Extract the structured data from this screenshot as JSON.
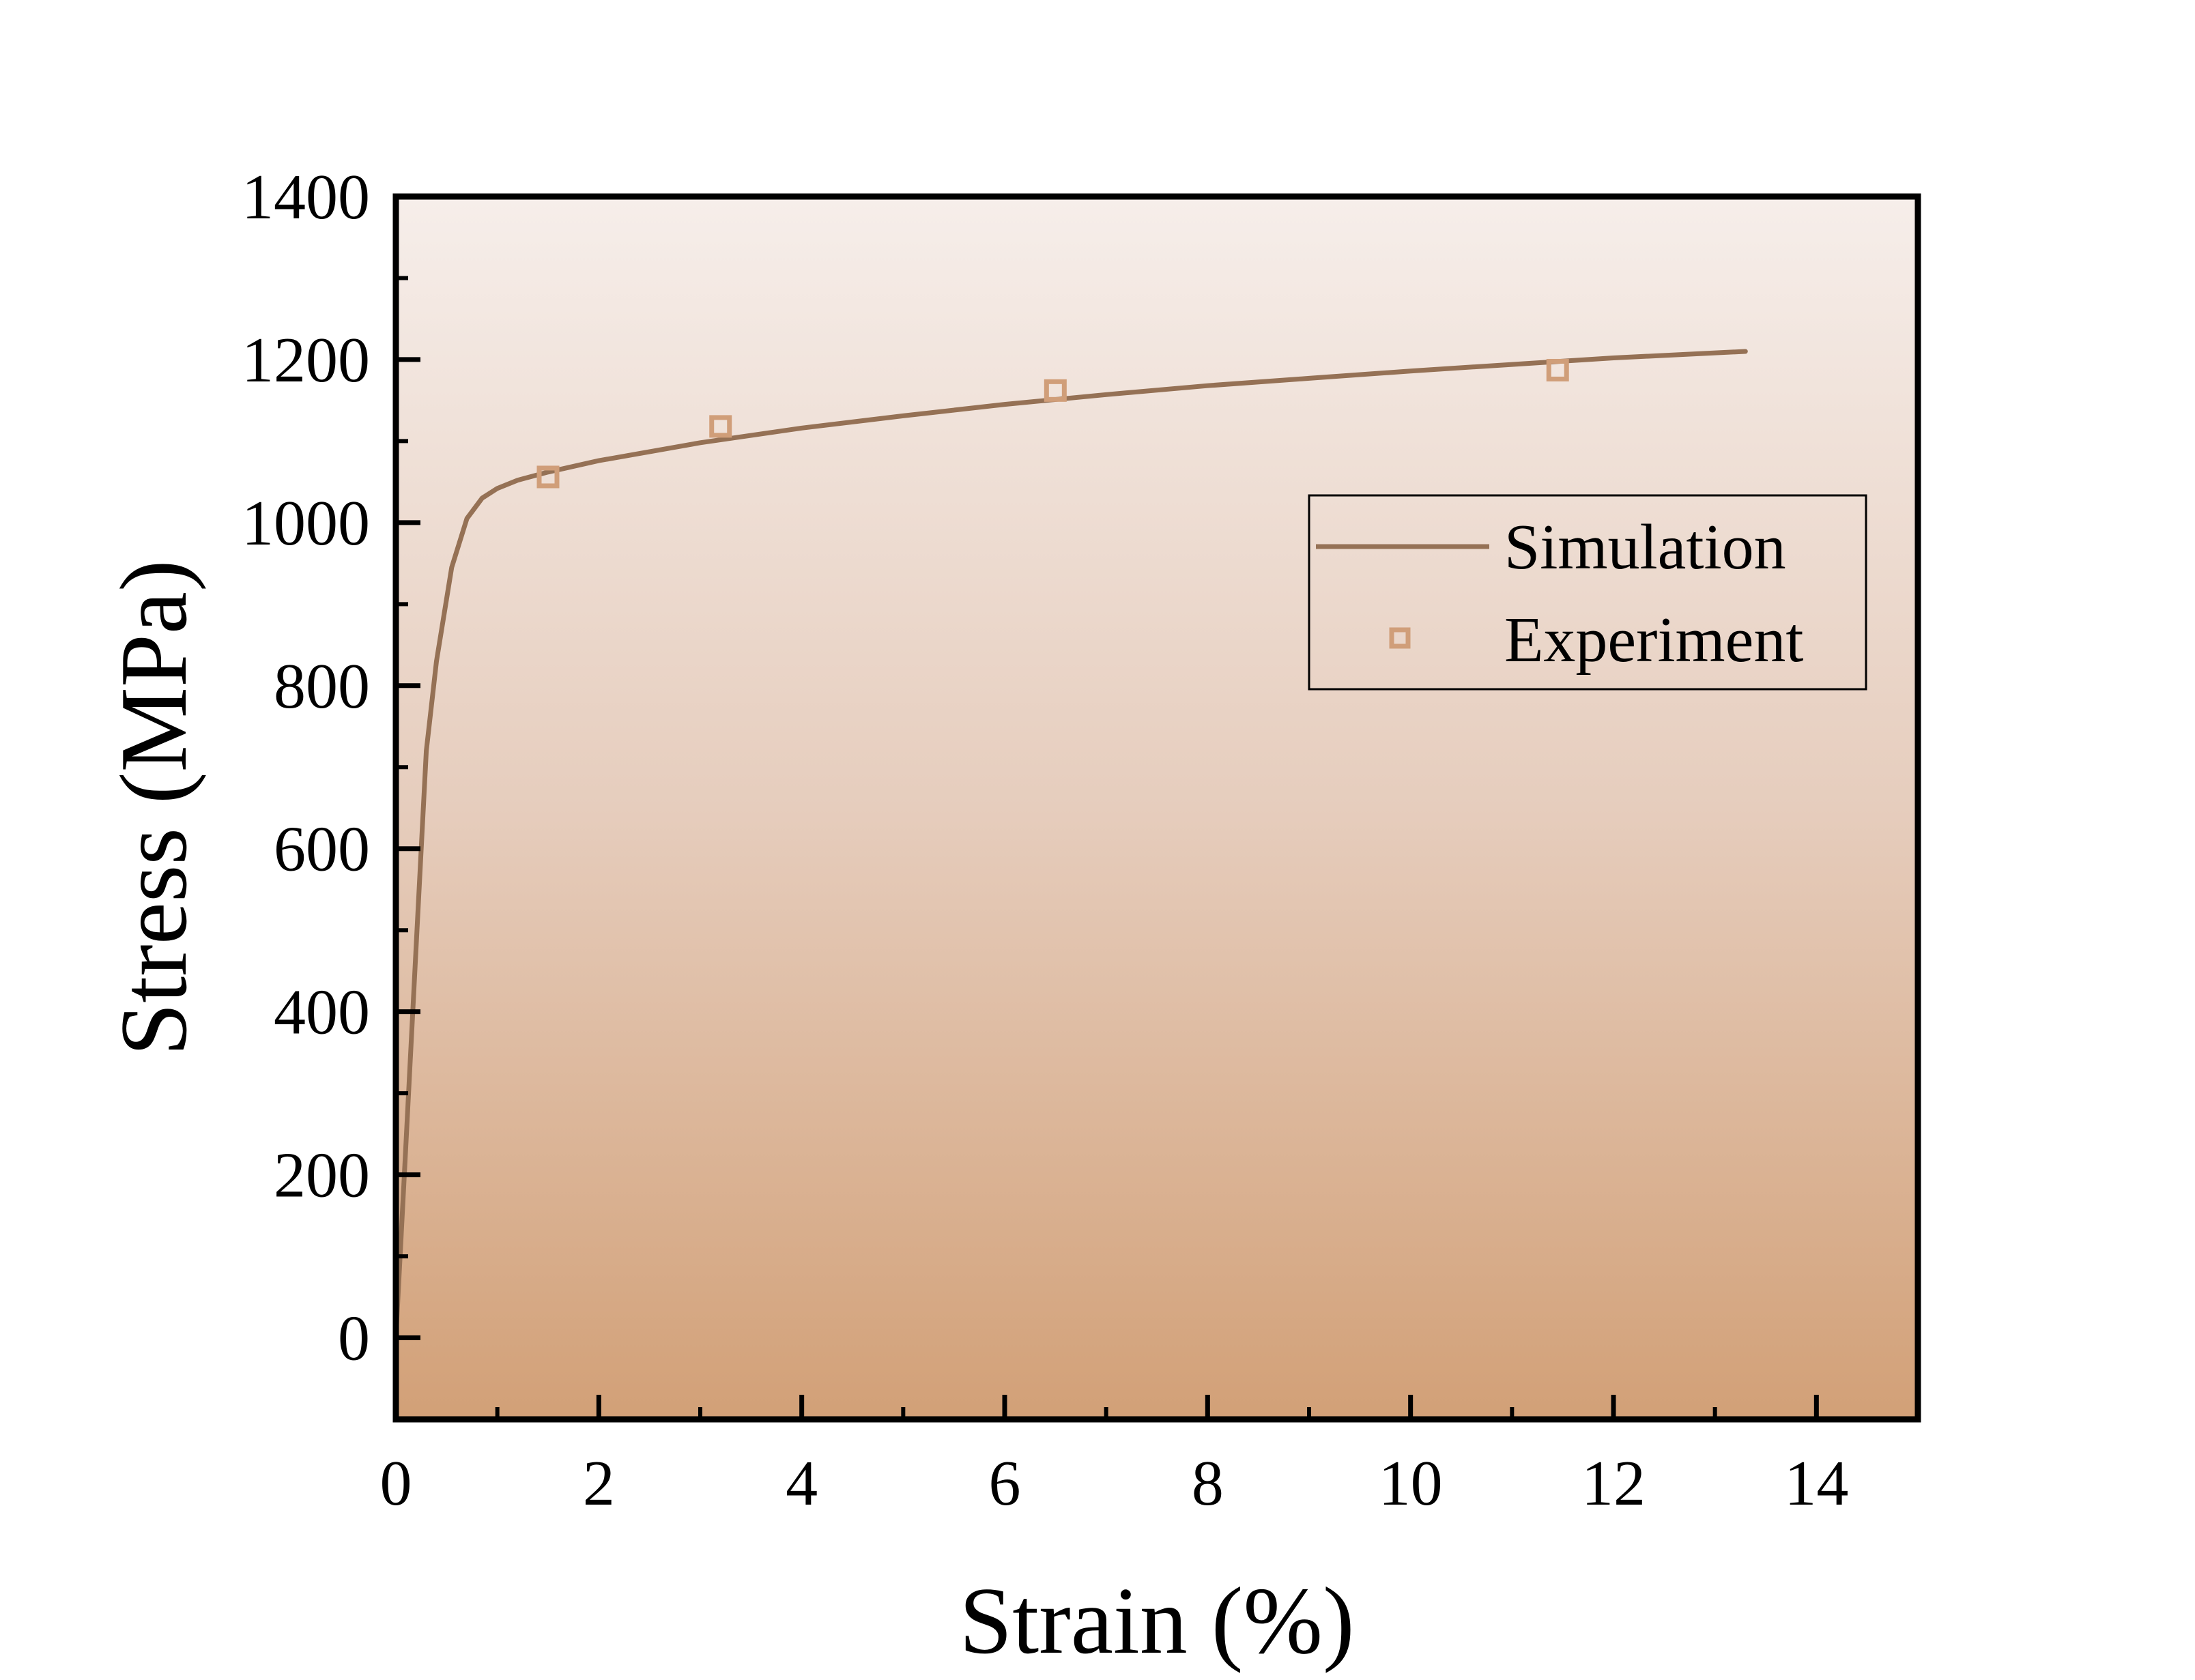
{
  "chart_data": {
    "type": "line",
    "title": "",
    "xlabel": "Strain (%)",
    "ylabel": "Stress (MPa)",
    "xlim": [
      0,
      15
    ],
    "ylim": [
      -100,
      1400
    ],
    "xticks": [
      0,
      2,
      4,
      6,
      8,
      10,
      12,
      14
    ],
    "yticks": [
      0,
      200,
      400,
      600,
      800,
      1000,
      1200,
      1400
    ],
    "grid": false,
    "legend_position": "right",
    "background": {
      "top": "#f6eeea",
      "bottom": "#d2a077"
    },
    "series": [
      {
        "name": "Simulation",
        "type": "line",
        "color": "#957155",
        "x": [
          0,
          0.1,
          0.2,
          0.3,
          0.4,
          0.55,
          0.7,
          0.85,
          1.0,
          1.2,
          1.5,
          2.0,
          3.0,
          4.0,
          5.0,
          6.0,
          7.0,
          8.0,
          9.0,
          10.0,
          11.0,
          12.0,
          13.3
        ],
        "y": [
          0,
          240,
          480,
          720,
          830,
          945,
          1005,
          1030,
          1042,
          1052,
          1062,
          1076,
          1098,
          1116,
          1131,
          1145,
          1157,
          1168,
          1177,
          1186,
          1194,
          1202,
          1210
        ]
      },
      {
        "name": "Experiment",
        "type": "scatter",
        "marker": "square-open",
        "color": "#d09e79",
        "x": [
          1.5,
          3.2,
          6.5,
          11.45
        ],
        "y": [
          1056,
          1118,
          1162,
          1187
        ]
      }
    ]
  }
}
